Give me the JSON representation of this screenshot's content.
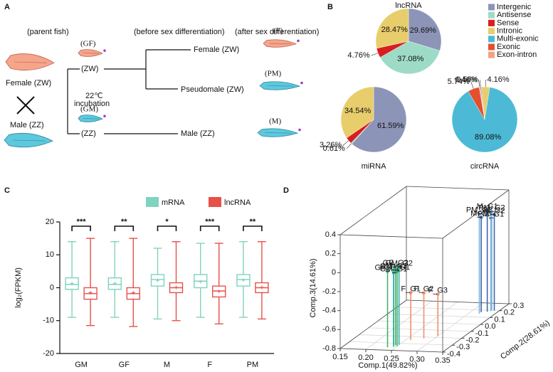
{
  "diagram": {
    "panel_label": "A",
    "headers": [
      "(parent fish)",
      "(before sex differentiation)",
      "(after sex differentiation)"
    ],
    "parents": [
      "Female (ZW)",
      "Male (ZZ)"
    ],
    "treatment": [
      "22℃",
      "incubation"
    ],
    "stages": [
      {
        "label": "(ZW)",
        "tag": "(GF)"
      },
      {
        "label": "(ZZ)",
        "tag": "(GM)"
      }
    ],
    "outcomes": [
      {
        "label": "Female (ZW)",
        "tag": "(F)"
      },
      {
        "label": "Pseudomale (ZW)",
        "tag": "(PM)"
      },
      {
        "label": "Male (ZZ)",
        "tag": "(M)"
      }
    ]
  },
  "chart_data": [
    {
      "type": "pie",
      "panel_label": "B",
      "series": [
        {
          "name": "Intergenic",
          "color": "#8c95b8"
        },
        {
          "name": "Antisense",
          "color": "#9edbc6"
        },
        {
          "name": "Sense",
          "color": "#d81e1e"
        },
        {
          "name": "Intronic",
          "color": "#e8cd6c"
        },
        {
          "name": "Multi-exonic",
          "color": "#4cbad6"
        },
        {
          "name": "Exonic",
          "color": "#e4502e"
        },
        {
          "name": "Exon-intron",
          "color": "#f2a283"
        }
      ],
      "pies": [
        {
          "title": "lncRNA",
          "values": [
            29.69,
            37.08,
            4.76,
            28.47,
            null,
            null,
            null
          ],
          "value_labels": [
            "29.69%",
            "37.08%",
            "4.76%",
            "28.47%",
            null,
            null,
            null
          ]
        },
        {
          "title": "miRNA",
          "values": [
            61.59,
            0.61,
            3.26,
            34.54,
            null,
            null,
            null
          ],
          "value_labels": [
            "61.59%",
            "0.61%",
            "3.26%",
            "34.54%",
            null,
            null,
            null
          ]
        },
        {
          "title": "circRNA",
          "values": [
            0.56,
            null,
            null,
            4.16,
            89.08,
            5.74,
            0.46
          ],
          "value_labels": [
            "0.56%",
            null,
            null,
            "4.16%",
            "89.08%",
            "5.74%",
            "0.46%"
          ]
        }
      ]
    },
    {
      "type": "box",
      "panel_label": "C",
      "ylabel": "log₂(FPKM)",
      "categories": [
        "GM",
        "GF",
        "M",
        "F",
        "PM"
      ],
      "series": [
        {
          "name": "mRNA",
          "color": "#7fd3bf",
          "low": [
            -9,
            -9,
            -9.5,
            -9,
            -9
          ],
          "q1": [
            -0.5,
            -0.5,
            0.5,
            0,
            0.5
          ],
          "median": [
            1,
            1,
            2.5,
            2,
            2.5
          ],
          "q3": [
            3,
            3,
            4,
            4,
            4
          ],
          "high": [
            14,
            14,
            12,
            13.5,
            14
          ],
          "mean": [
            1.3,
            1.3,
            2.2,
            1.8,
            2.3
          ]
        },
        {
          "name": "lncRNA",
          "color": "#e8504a",
          "low": [
            -11.5,
            -11.8,
            -10,
            -11,
            -9.5
          ],
          "q1": [
            -3.5,
            -3.5,
            -1.5,
            -2.8,
            -1.5
          ],
          "median": [
            -1.8,
            -1.8,
            0,
            -1,
            0
          ],
          "q3": [
            0,
            0,
            1.5,
            0.5,
            1.5
          ],
          "high": [
            15,
            15,
            14,
            13.5,
            14
          ],
          "mean": [
            -1.5,
            -1.5,
            0.1,
            -1.1,
            0.1
          ]
        }
      ],
      "significance": [
        "***",
        "**",
        "*",
        "***",
        "**"
      ],
      "ylim": [
        -20,
        20
      ],
      "yticks": [
        -20,
        -10,
        0,
        10,
        20
      ]
    },
    {
      "type": "scatter3d",
      "panel_label": "D",
      "xlabel": "Comp.1(49.82%)",
      "ylabel": "Comp.2(28.61%)",
      "zlabel": "Comp.3(14.61%)",
      "xlim": [
        0.15,
        0.35
      ],
      "xticks": [
        0.15,
        {
          "value": 0.2,
          "label": "0.20"
        },
        0.25,
        {
          "value": 0.3,
          "label": "0.30"
        },
        0.35
      ],
      "ylim": [
        -0.4,
        0.3
      ],
      "yticks": [
        -0.4,
        -0.3,
        -0.2,
        -0.1,
        {
          "value": 0,
          "label": "0.0"
        },
        0.1,
        0.2,
        0.3
      ],
      "zlim": [
        -0.8,
        0.4
      ],
      "zticks": [
        -0.8,
        -0.6,
        -0.4,
        -0.2,
        0,
        0.2,
        0.4
      ],
      "points": [
        {
          "label": "PM_G3",
          "x": 0.32,
          "y": 0.15,
          "z": 0.25,
          "color": "#7fb2dc"
        },
        {
          "label": "M_G1",
          "x": 0.33,
          "y": 0.18,
          "z": 0.27,
          "color": "#3a6aa8"
        },
        {
          "label": "PM_G2",
          "x": 0.335,
          "y": 0.2,
          "z": 0.24,
          "color": "#7fb2dc"
        },
        {
          "label": "M_G3",
          "x": 0.32,
          "y": 0.17,
          "z": 0.2,
          "color": "#3a6aa8"
        },
        {
          "label": "M_G2",
          "x": 0.34,
          "y": 0.2,
          "z": 0.21,
          "color": "#3a6aa8"
        },
        {
          "label": "PM_G1",
          "x": 0.335,
          "y": 0.19,
          "z": 0.18,
          "color": "#7fb2dc"
        },
        {
          "label": "GF_G2",
          "x": 0.245,
          "y": -0.33,
          "z": 0.03,
          "color": "#45b36b"
        },
        {
          "label": "GF_G3",
          "x": 0.235,
          "y": -0.36,
          "z": 0.0,
          "color": "#45b36b"
        },
        {
          "label": "GM_G3",
          "x": 0.245,
          "y": -0.35,
          "z": 0.01,
          "color": "#2fb0a8"
        },
        {
          "label": "GM_G2",
          "x": 0.25,
          "y": -0.32,
          "z": 0.02,
          "color": "#2fb0a8"
        },
        {
          "label": "GF_G1",
          "x": 0.25,
          "y": -0.34,
          "z": -0.01,
          "color": "#45b36b"
        },
        {
          "label": "GM_G1",
          "x": 0.245,
          "y": -0.35,
          "z": -0.02,
          "color": "#2fb0a8"
        },
        {
          "label": "F_G1",
          "x": 0.26,
          "y": -0.25,
          "z": -0.3,
          "color": "#f0916c"
        },
        {
          "label": "F_G2",
          "x": 0.28,
          "y": -0.22,
          "z": -0.32,
          "color": "#f0916c"
        },
        {
          "label": "F_G3",
          "x": 0.3,
          "y": -0.18,
          "z": -0.36,
          "color": "#f0916c"
        }
      ]
    }
  ]
}
